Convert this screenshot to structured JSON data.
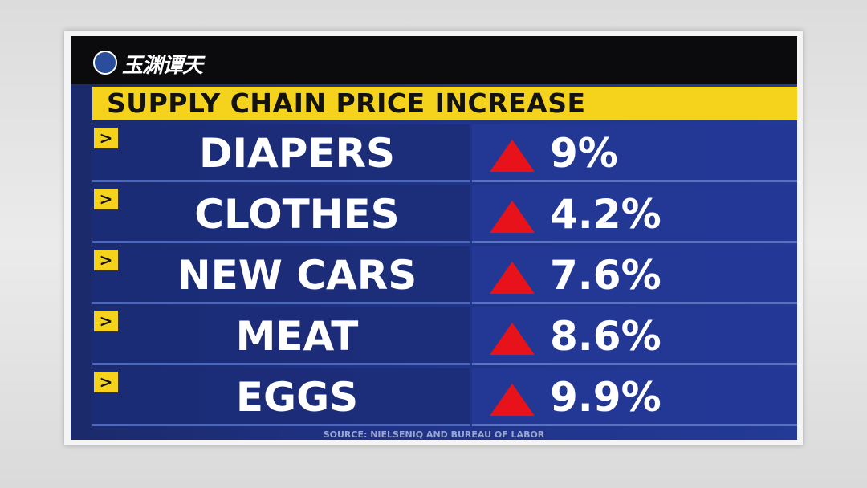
{
  "logo": {
    "text": "玉渊谭天"
  },
  "header": {
    "title": "SUPPLY CHAIN PRICE INCREASE"
  },
  "table": {
    "rows": [
      [
        "DIAPERS",
        "9%"
      ],
      [
        "CLOTHES",
        "4.2%"
      ],
      [
        "NEW CARS",
        "7.6%"
      ],
      [
        "MEAT",
        "8.6%"
      ],
      [
        "EGGS",
        "9.9%"
      ]
    ]
  },
  "footer": {
    "source": "SOURCE: NIELSENIQ AND BUREAU OF LABOR"
  }
}
